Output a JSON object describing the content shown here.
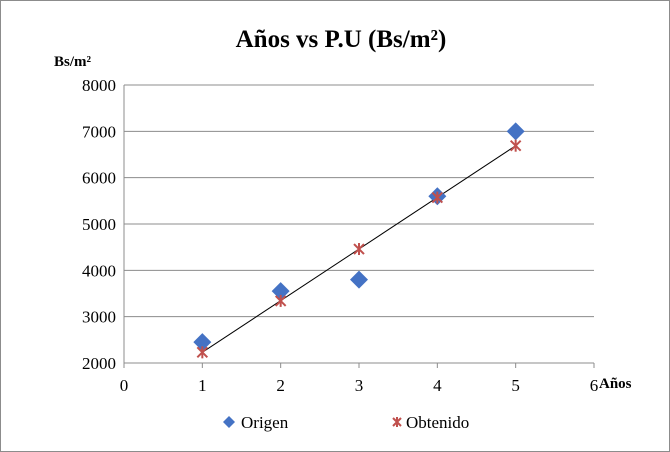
{
  "chart_data": {
    "type": "scatter",
    "title": "Años vs P.U (Bs/m²)",
    "xlabel": "Años",
    "ylabel": "Bs/m²",
    "xlim": [
      0,
      6
    ],
    "ylim": [
      2000,
      8000
    ],
    "x_ticks": [
      0,
      1,
      2,
      3,
      4,
      5,
      6
    ],
    "y_ticks": [
      2000,
      3000,
      4000,
      5000,
      6000,
      7000,
      8000
    ],
    "grid": "horizontal",
    "legend_position": "bottom",
    "series": [
      {
        "name": "Origen",
        "marker": "diamond",
        "color": "#4472C4",
        "x": [
          1,
          2,
          3,
          4,
          5
        ],
        "y": [
          2450,
          3550,
          3800,
          5600,
          7000
        ]
      },
      {
        "name": "Obtenido",
        "marker": "star-x",
        "color": "#C0504D",
        "x": [
          1,
          2,
          3,
          4,
          5
        ],
        "y": [
          2230,
          3340,
          4460,
          5570,
          6690
        ]
      }
    ],
    "trendline": {
      "color": "#000000",
      "x": [
        1,
        5
      ],
      "y": [
        2230,
        6690
      ]
    }
  }
}
